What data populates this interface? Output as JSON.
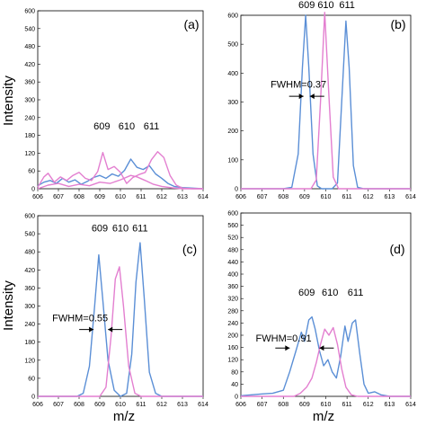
{
  "figure": {
    "ylabel_top": "Intensity",
    "ylabel_bottom": "Intensity",
    "xlabel_left": "m/z",
    "xlabel_right": "m/z"
  },
  "colors": {
    "blue": "#5b8fd6",
    "pink": "#e37fd0",
    "axis": "#000000"
  },
  "chart_data": [
    {
      "type": "line",
      "panel_label": "(a)",
      "xlim": [
        606,
        614
      ],
      "ylim": [
        0,
        600
      ],
      "xticks": [
        "606",
        "607",
        "608",
        "609",
        "610",
        "611",
        "612",
        "613",
        "614"
      ],
      "yticks": [
        "0",
        "60",
        "120",
        "180",
        "240",
        "300",
        "360",
        "420",
        "480",
        "540",
        "600"
      ],
      "peak_labels": [
        {
          "text": "609",
          "x": 609.1,
          "y": 200
        },
        {
          "text": "610",
          "x": 610.3,
          "y": 200
        },
        {
          "text": "611",
          "x": 611.5,
          "y": 200
        }
      ],
      "annotation": null,
      "series": [
        {
          "color": "blue",
          "points": [
            [
              606.0,
              10
            ],
            [
              606.3,
              22
            ],
            [
              606.6,
              28
            ],
            [
              606.9,
              18
            ],
            [
              607.2,
              35
            ],
            [
              607.5,
              22
            ],
            [
              607.8,
              30
            ],
            [
              608.1,
              15
            ],
            [
              608.4,
              25
            ],
            [
              608.7,
              38
            ],
            [
              609.0,
              45
            ],
            [
              609.3,
              35
            ],
            [
              609.6,
              50
            ],
            [
              609.9,
              42
            ],
            [
              610.2,
              62
            ],
            [
              610.5,
              100
            ],
            [
              610.8,
              72
            ],
            [
              611.1,
              65
            ],
            [
              611.4,
              78
            ],
            [
              611.7,
              50
            ],
            [
              612.0,
              35
            ],
            [
              612.3,
              18
            ],
            [
              612.6,
              8
            ],
            [
              613.0,
              4
            ],
            [
              613.5,
              2
            ],
            [
              614.0,
              0
            ]
          ]
        },
        {
          "color": "pink",
          "points": [
            [
              606.0,
              5
            ],
            [
              606.3,
              40
            ],
            [
              606.5,
              52
            ],
            [
              606.8,
              22
            ],
            [
              607.1,
              40
            ],
            [
              607.4,
              28
            ],
            [
              607.7,
              45
            ],
            [
              608.0,
              55
            ],
            [
              608.3,
              35
            ],
            [
              608.6,
              28
            ],
            [
              608.9,
              58
            ],
            [
              609.15,
              122
            ],
            [
              609.4,
              65
            ],
            [
              609.7,
              75
            ],
            [
              610.0,
              55
            ],
            [
              610.3,
              18
            ],
            [
              610.6,
              38
            ],
            [
              610.9,
              48
            ],
            [
              611.2,
              55
            ],
            [
              611.5,
              98
            ],
            [
              611.8,
              125
            ],
            [
              612.1,
              105
            ],
            [
              612.4,
              45
            ],
            [
              612.7,
              12
            ],
            [
              613.0,
              2
            ],
            [
              613.5,
              0
            ],
            [
              614.0,
              0
            ]
          ]
        },
        {
          "color": "pink",
          "points": [
            [
              606.0,
              0
            ],
            [
              606.5,
              12
            ],
            [
              607.0,
              18
            ],
            [
              607.5,
              8
            ],
            [
              608.0,
              15
            ],
            [
              608.5,
              10
            ],
            [
              609.0,
              22
            ],
            [
              609.5,
              18
            ],
            [
              610.0,
              30
            ],
            [
              610.5,
              45
            ],
            [
              610.8,
              40
            ],
            [
              611.2,
              28
            ],
            [
              611.6,
              15
            ],
            [
              612.0,
              8
            ],
            [
              612.5,
              3
            ],
            [
              613.0,
              0
            ],
            [
              614.0,
              0
            ]
          ]
        }
      ]
    },
    {
      "type": "line",
      "panel_label": "(b)",
      "xlim": [
        606,
        614
      ],
      "ylim": [
        0,
        600
      ],
      "xticks": [
        "606",
        "607",
        "608",
        "609",
        "610",
        "611",
        "612",
        "613",
        "614"
      ],
      "yticks": [
        "0",
        "100",
        "200",
        "300",
        "400",
        "500",
        "600"
      ],
      "peak_labels": [
        {
          "text": "609",
          "x": 609.1,
          "y": 625
        },
        {
          "text": "610",
          "x": 610.0,
          "y": 625
        },
        {
          "text": "611",
          "x": 611.0,
          "y": 625
        }
      ],
      "annotation": {
        "text": "FWHM=0.37",
        "x": 607.4,
        "y": 350,
        "arrow_left_x": 608.95,
        "arrow_right_x": 609.25,
        "arrow_y": 320
      },
      "series": [
        {
          "color": "blue",
          "points": [
            [
              606.0,
              0
            ],
            [
              608.0,
              0
            ],
            [
              608.4,
              5
            ],
            [
              608.7,
              120
            ],
            [
              608.9,
              420
            ],
            [
              609.05,
              600
            ],
            [
              609.2,
              420
            ],
            [
              609.4,
              120
            ],
            [
              609.6,
              10
            ],
            [
              609.8,
              0
            ],
            [
              610.3,
              0
            ],
            [
              610.55,
              20
            ],
            [
              610.75,
              300
            ],
            [
              610.95,
              580
            ],
            [
              611.1,
              420
            ],
            [
              611.3,
              80
            ],
            [
              611.5,
              5
            ],
            [
              611.8,
              0
            ],
            [
              614.0,
              0
            ]
          ]
        },
        {
          "color": "pink",
          "points": [
            [
              606.0,
              0
            ],
            [
              609.3,
              0
            ],
            [
              609.55,
              30
            ],
            [
              609.75,
              300
            ],
            [
              609.95,
              610
            ],
            [
              610.15,
              320
            ],
            [
              610.35,
              40
            ],
            [
              610.6,
              0
            ],
            [
              614.0,
              0
            ]
          ]
        }
      ]
    },
    {
      "type": "line",
      "panel_label": "(c)",
      "xlim": [
        606,
        614
      ],
      "ylim": [
        0,
        600
      ],
      "xticks": [
        "606",
        "607",
        "608",
        "609",
        "610",
        "611",
        "612",
        "613",
        "614"
      ],
      "yticks": [
        "0",
        "60",
        "120",
        "180",
        "240",
        "300",
        "360",
        "420",
        "480",
        "540",
        "600"
      ],
      "peak_labels": [
        {
          "text": "609",
          "x": 609.0,
          "y": 548
        },
        {
          "text": "610",
          "x": 610.0,
          "y": 548
        },
        {
          "text": "611",
          "x": 610.95,
          "y": 548
        }
      ],
      "annotation": {
        "text": "FWHM=0.55",
        "x": 606.7,
        "y": 250,
        "arrow_left_x": 608.7,
        "arrow_right_x": 609.4,
        "arrow_y": 222
      },
      "series": [
        {
          "color": "blue",
          "points": [
            [
              606.0,
              0
            ],
            [
              607.9,
              0
            ],
            [
              608.2,
              10
            ],
            [
              608.5,
              100
            ],
            [
              608.75,
              300
            ],
            [
              608.95,
              470
            ],
            [
              609.15,
              320
            ],
            [
              609.4,
              120
            ],
            [
              609.7,
              20
            ],
            [
              610.0,
              0
            ],
            [
              610.3,
              10
            ],
            [
              610.55,
              140
            ],
            [
              610.75,
              380
            ],
            [
              610.95,
              510
            ],
            [
              611.15,
              330
            ],
            [
              611.4,
              80
            ],
            [
              611.7,
              10
            ],
            [
              612.0,
              0
            ],
            [
              614.0,
              0
            ]
          ]
        },
        {
          "color": "pink",
          "points": [
            [
              606.0,
              0
            ],
            [
              609.0,
              0
            ],
            [
              609.3,
              30
            ],
            [
              609.55,
              200
            ],
            [
              609.75,
              390
            ],
            [
              609.95,
              430
            ],
            [
              610.15,
              300
            ],
            [
              610.4,
              100
            ],
            [
              610.7,
              10
            ],
            [
              611.0,
              0
            ],
            [
              614.0,
              0
            ]
          ]
        }
      ]
    },
    {
      "type": "line",
      "panel_label": "(d)",
      "xlim": [
        606,
        614
      ],
      "ylim": [
        0,
        600
      ],
      "xticks": [
        "606",
        "607",
        "608",
        "609",
        "610",
        "611",
        "612",
        "613",
        "614"
      ],
      "yticks": [
        "0",
        "40",
        "80",
        "120",
        "160",
        "200",
        "240",
        "280",
        "320",
        "360",
        "400",
        "440",
        "480",
        "520",
        "560",
        "600"
      ],
      "peak_labels": [
        {
          "text": "609",
          "x": 609.1,
          "y": 330
        },
        {
          "text": "610",
          "x": 610.2,
          "y": 330
        },
        {
          "text": "611",
          "x": 611.4,
          "y": 330
        }
      ],
      "annotation": {
        "text": "FWHM=0.91",
        "x": 606.7,
        "y": 180,
        "arrow_left_x": 608.3,
        "arrow_right_x": 609.7,
        "arrow_y": 158
      },
      "series": [
        {
          "color": "blue",
          "points": [
            [
              606.0,
              2
            ],
            [
              606.5,
              5
            ],
            [
              607.0,
              8
            ],
            [
              607.5,
              10
            ],
            [
              608.0,
              20
            ],
            [
              608.3,
              80
            ],
            [
              608.6,
              150
            ],
            [
              608.85,
              210
            ],
            [
              609.0,
              180
            ],
            [
              609.2,
              250
            ],
            [
              609.35,
              260
            ],
            [
              609.5,
              220
            ],
            [
              609.7,
              150
            ],
            [
              609.9,
              100
            ],
            [
              610.1,
              120
            ],
            [
              610.3,
              80
            ],
            [
              610.5,
              60
            ],
            [
              610.7,
              130
            ],
            [
              610.9,
              230
            ],
            [
              611.05,
              180
            ],
            [
              611.25,
              240
            ],
            [
              611.4,
              250
            ],
            [
              611.6,
              140
            ],
            [
              611.8,
              40
            ],
            [
              612.0,
              10
            ],
            [
              612.3,
              15
            ],
            [
              612.6,
              5
            ],
            [
              613.0,
              0
            ],
            [
              614.0,
              0
            ]
          ]
        },
        {
          "color": "pink",
          "points": [
            [
              606.0,
              0
            ],
            [
              608.5,
              0
            ],
            [
              608.8,
              10
            ],
            [
              609.1,
              30
            ],
            [
              609.35,
              60
            ],
            [
              609.55,
              110
            ],
            [
              609.75,
              170
            ],
            [
              609.95,
              220
            ],
            [
              610.15,
              200
            ],
            [
              610.35,
              225
            ],
            [
              610.55,
              170
            ],
            [
              610.75,
              90
            ],
            [
              610.95,
              30
            ],
            [
              611.2,
              5
            ],
            [
              611.5,
              0
            ],
            [
              614.0,
              0
            ]
          ]
        }
      ]
    }
  ]
}
